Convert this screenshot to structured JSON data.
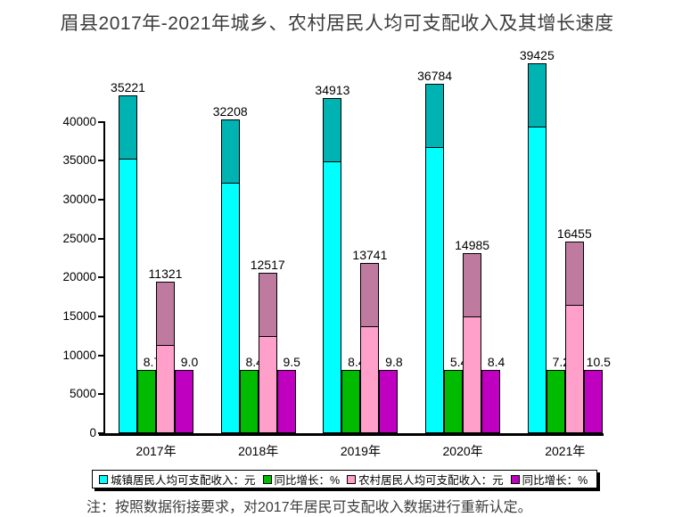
{
  "chart_data": {
    "type": "bar",
    "title": "眉县2017年-2021年城乡、农村居民人均可支配收入及其增长速度",
    "note": "注：按照数据衔接要求，对2017年居民可支配收入数据进行重新认定。",
    "categories": [
      "2017年",
      "2018年",
      "2019年",
      "2020年",
      "2021年"
    ],
    "series": [
      {
        "key": "urban-income",
        "name": "城镇居民人均可支配收入：元",
        "unit": "元",
        "color": "#00FFFF",
        "cap_color": "#00B3B3",
        "display": "scaled-with-cap",
        "values": [
          35221,
          32208,
          34913,
          36784,
          39425
        ],
        "labels": [
          "35221",
          "32208",
          "34913",
          "36784",
          "39425"
        ]
      },
      {
        "key": "urban-growth",
        "name": "同比增长：%",
        "unit": "%",
        "color": "#00BB00",
        "display": "fixed-height",
        "values": [
          8.7,
          8.4,
          8.4,
          5.4,
          7.2
        ],
        "labels": [
          "8.7",
          "8.4",
          "8.4",
          "5.4",
          "7.2"
        ]
      },
      {
        "key": "rural-income",
        "name": "农村居民人均可支配收入：元",
        "unit": "元",
        "color": "#FFA0CB",
        "cap_color": "#BF7AA0",
        "display": "scaled-with-cap",
        "values": [
          11321,
          12517,
          13741,
          14985,
          16455
        ],
        "labels": [
          "11321",
          "12517",
          "13741",
          "14985",
          "16455"
        ]
      },
      {
        "key": "rural-growth",
        "name": "同比增长：%",
        "unit": "%",
        "color": "#C000C0",
        "display": "fixed-height",
        "values": [
          9.0,
          9.5,
          9.8,
          8.4,
          10.5
        ],
        "labels": [
          "9.0",
          "9.5",
          "9.8",
          "8.4",
          "10.5"
        ]
      }
    ],
    "y_axis": {
      "ticks": [
        0,
        5000,
        10000,
        15000,
        20000,
        25000,
        30000,
        35000,
        40000
      ],
      "range": [
        0,
        40000
      ]
    },
    "legend_position": "bottom",
    "gridlines": false
  }
}
